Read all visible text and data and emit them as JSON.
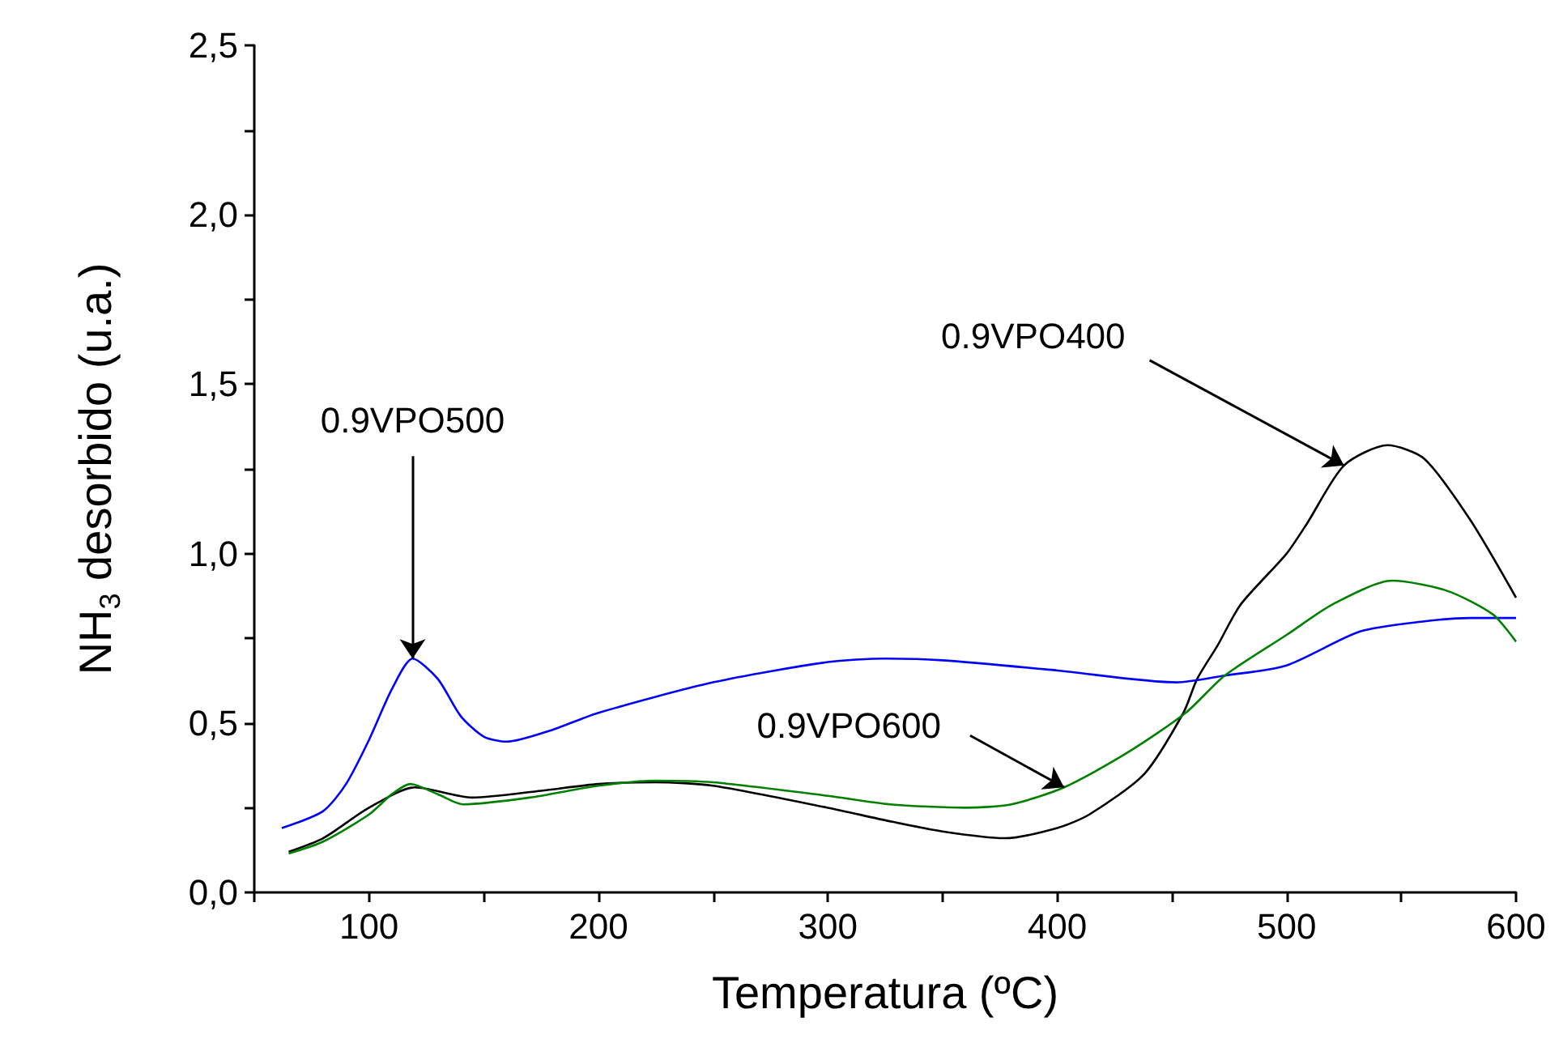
{
  "chart_data": {
    "type": "line",
    "xlabel": "Temperatura (ºC)",
    "ylabel": "NH$_{3}$ desorbido (u.a.)",
    "xlim": [
      50,
      600
    ],
    "ylim": [
      0,
      2.5
    ],
    "xticks": [
      {
        "value": 50,
        "label": null
      },
      100,
      {
        "value": 150,
        "label": null
      },
      200,
      {
        "value": 250,
        "label": null
      },
      300,
      {
        "value": 350,
        "label": null
      },
      400,
      {
        "value": 450,
        "label": null
      },
      500,
      {
        "value": 550,
        "label": null
      },
      600
    ],
    "yticks": [
      {
        "value": 0,
        "label": "0,0"
      },
      {
        "value": 0.25,
        "label": null
      },
      {
        "value": 0.5,
        "label": "0,5"
      },
      {
        "value": 0.75,
        "label": null
      },
      {
        "value": 1,
        "label": "1,0"
      },
      {
        "value": 1.25,
        "label": null
      },
      {
        "value": 1.5,
        "label": "1,5"
      },
      {
        "value": 1.75,
        "label": null
      },
      {
        "value": 2,
        "label": "2,0"
      },
      {
        "value": 2.25,
        "label": null
      },
      {
        "value": 2.5,
        "label": "2,5"
      }
    ],
    "grid": false,
    "series": [
      {
        "color": "#000000",
        "x": [
          65,
          80,
          100,
          120,
          145,
          175,
          200,
          225,
          250,
          300,
          327,
          350,
          377,
          400,
          414,
          438,
          455,
          461,
          470,
          480,
          500,
          509,
          525,
          544,
          560,
          580,
          600
        ],
        "values": [
          0.12,
          0.16,
          0.25,
          0.31,
          0.28,
          0.3,
          0.32,
          0.325,
          0.315,
          0.25,
          0.21,
          0.18,
          0.16,
          0.19,
          0.23,
          0.35,
          0.53,
          0.63,
          0.73,
          0.85,
          1.0,
          1.09,
          1.26,
          1.32,
          1.28,
          1.1,
          0.87
        ]
      },
      {
        "color": "#0000ff",
        "x": [
          62,
          80,
          90,
          100,
          110,
          119,
          130,
          140,
          150,
          160,
          180,
          200,
          250,
          300,
          325,
          350,
          400,
          452,
          473,
          500,
          532,
          560,
          580,
          600
        ],
        "values": [
          0.19,
          0.24,
          0.32,
          0.45,
          0.6,
          0.69,
          0.63,
          0.52,
          0.46,
          0.445,
          0.48,
          0.53,
          0.62,
          0.68,
          0.69,
          0.685,
          0.655,
          0.62,
          0.64,
          0.67,
          0.77,
          0.8,
          0.81,
          0.81
        ]
      },
      {
        "color": "#008000",
        "x": [
          65,
          80,
          100,
          110,
          118,
          130,
          141,
          170,
          200,
          225,
          250,
          300,
          327,
          360,
          380,
          403,
          430,
          456,
          473,
          500,
          520,
          546,
          570,
          590,
          600
        ],
        "values": [
          0.115,
          0.15,
          0.23,
          0.29,
          0.32,
          0.29,
          0.26,
          0.28,
          0.315,
          0.33,
          0.325,
          0.285,
          0.26,
          0.25,
          0.26,
          0.31,
          0.41,
          0.53,
          0.64,
          0.76,
          0.85,
          0.92,
          0.89,
          0.82,
          0.74
        ]
      }
    ],
    "annotations": [
      {
        "text": "0.9VPO400",
        "x": 525,
        "y": 1.26
      },
      {
        "text": "0.9VPO500",
        "x": 119,
        "y": 0.69
      },
      {
        "text": "0.9VPO600",
        "x": 403,
        "y": 0.31
      }
    ]
  }
}
